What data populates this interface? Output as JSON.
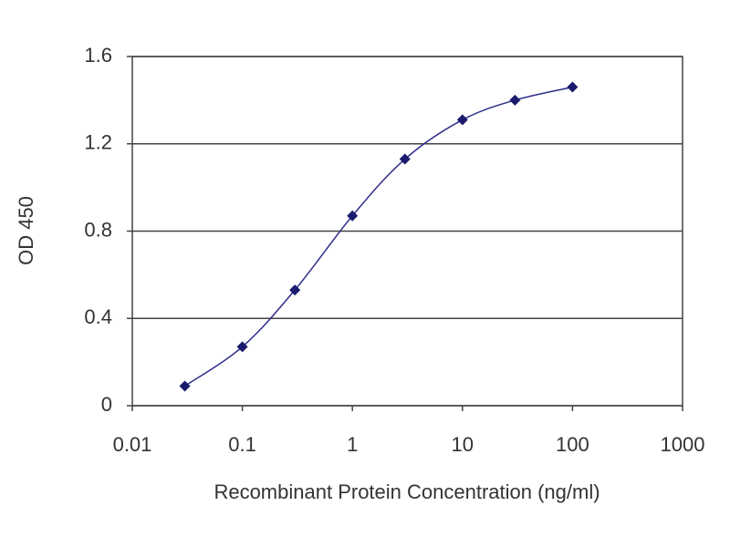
{
  "chart_data": {
    "type": "line",
    "x_label": "Recombinant Protein Concentration (ng/ml)",
    "y_label": "OD 450",
    "x": [
      0.03,
      0.1,
      0.3,
      1,
      3,
      10,
      30,
      100
    ],
    "series": [
      {
        "name": "OD 450",
        "color": "#2e2e8a",
        "values": [
          0.09,
          0.27,
          0.53,
          0.87,
          1.13,
          1.31,
          1.4,
          1.46
        ]
      }
    ],
    "xscale": "log",
    "xlim": [
      0.01,
      1000
    ],
    "xticks": [
      0.01,
      0.1,
      1,
      10,
      100,
      1000
    ],
    "ylim": [
      0,
      1.6
    ],
    "yticks": [
      0,
      0.4,
      0.8,
      1.2,
      1.6
    ],
    "grid": true,
    "smooth": true
  }
}
